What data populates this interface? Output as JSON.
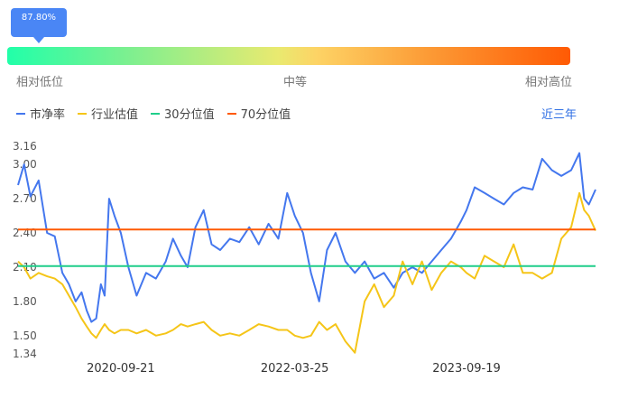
{
  "position": {
    "percentile_label": "87.80%",
    "percentile": 0.878,
    "low_label": "相对低位",
    "mid_label": "中等",
    "high_label": "相对高位"
  },
  "range_selector": {
    "label": "近三年"
  },
  "colors": {
    "pb": "#4477ee",
    "industry": "#f5c518",
    "p30": "#1fce8a",
    "p70": "#ff5a04",
    "accent": "#4a86f5"
  },
  "chart_data": {
    "type": "line",
    "title": "",
    "xlabel": "",
    "ylabel": "",
    "ylim": [
      1.34,
      3.16
    ],
    "yticks": [
      "3.16",
      "3.00",
      "2.70",
      "2.40",
      "2.10",
      "1.80",
      "1.50",
      "1.34"
    ],
    "ytick_values": [
      3.16,
      3.0,
      2.7,
      2.4,
      2.1,
      1.8,
      1.5,
      1.34
    ],
    "xticks": [
      "2020-09-21",
      "2022-03-25",
      "2023-09-19"
    ],
    "x_range": [
      "2019-11-01",
      "2024-10-31"
    ],
    "grid": false,
    "legend_placement": "top-left",
    "series": [
      {
        "name": "市净率",
        "color_key": "pb",
        "x": [
          "2019-11-01",
          "2019-11-20",
          "2019-12-10",
          "2020-01-05",
          "2020-02-01",
          "2020-02-25",
          "2020-03-20",
          "2020-04-10",
          "2020-05-01",
          "2020-05-20",
          "2020-06-05",
          "2020-06-20",
          "2020-07-05",
          "2020-07-20",
          "2020-08-01",
          "2020-08-15",
          "2020-09-01",
          "2020-09-21",
          "2020-10-15",
          "2020-11-10",
          "2020-12-10",
          "2021-01-10",
          "2021-02-10",
          "2021-03-05",
          "2021-03-30",
          "2021-04-20",
          "2021-05-15",
          "2021-06-10",
          "2021-07-05",
          "2021-08-01",
          "2021-09-01",
          "2021-10-01",
          "2021-11-01",
          "2021-12-01",
          "2022-01-01",
          "2022-02-01",
          "2022-03-01",
          "2022-03-25",
          "2022-04-20",
          "2022-05-15",
          "2022-06-10",
          "2022-07-05",
          "2022-08-01",
          "2022-09-01",
          "2022-10-01",
          "2022-11-01",
          "2022-12-01",
          "2023-01-01",
          "2023-02-01",
          "2023-03-01",
          "2023-04-01",
          "2023-05-01",
          "2023-06-01",
          "2023-07-01",
          "2023-08-01",
          "2023-09-01",
          "2023-09-19",
          "2023-10-15",
          "2023-11-15",
          "2023-12-15",
          "2024-01-15",
          "2024-02-15",
          "2024-03-15",
          "2024-04-15",
          "2024-05-15",
          "2024-06-15",
          "2024-07-15",
          "2024-08-15",
          "2024-09-10",
          "2024-09-25",
          "2024-10-10",
          "2024-10-31"
        ],
        "values": [
          2.82,
          3.0,
          2.72,
          2.86,
          2.4,
          2.37,
          2.05,
          1.95,
          1.8,
          1.88,
          1.72,
          1.62,
          1.65,
          1.95,
          1.85,
          2.7,
          2.55,
          2.4,
          2.1,
          1.85,
          2.05,
          2.0,
          2.15,
          2.35,
          2.2,
          2.1,
          2.45,
          2.6,
          2.3,
          2.25,
          2.35,
          2.32,
          2.45,
          2.3,
          2.48,
          2.35,
          2.75,
          2.55,
          2.4,
          2.05,
          1.8,
          2.25,
          2.4,
          2.15,
          2.05,
          2.15,
          2.0,
          2.05,
          1.92,
          2.05,
          2.1,
          2.05,
          2.15,
          2.25,
          2.35,
          2.5,
          2.6,
          2.8,
          2.75,
          2.7,
          2.65,
          2.75,
          2.8,
          2.78,
          3.05,
          2.95,
          2.9,
          2.95,
          3.1,
          2.7,
          2.65,
          2.78
        ]
      },
      {
        "name": "行业估值",
        "color_key": "industry",
        "x": [
          "2019-11-01",
          "2019-11-20",
          "2019-12-10",
          "2020-01-05",
          "2020-02-01",
          "2020-02-25",
          "2020-03-20",
          "2020-04-10",
          "2020-05-01",
          "2020-05-20",
          "2020-06-05",
          "2020-06-20",
          "2020-07-05",
          "2020-07-20",
          "2020-08-01",
          "2020-08-15",
          "2020-09-01",
          "2020-09-21",
          "2020-10-15",
          "2020-11-10",
          "2020-12-10",
          "2021-01-10",
          "2021-02-10",
          "2021-03-05",
          "2021-03-30",
          "2021-04-20",
          "2021-05-15",
          "2021-06-10",
          "2021-07-05",
          "2021-08-01",
          "2021-09-01",
          "2021-10-01",
          "2021-11-01",
          "2021-12-01",
          "2022-01-01",
          "2022-02-01",
          "2022-03-01",
          "2022-03-25",
          "2022-04-20",
          "2022-05-15",
          "2022-06-10",
          "2022-07-05",
          "2022-08-01",
          "2022-09-01",
          "2022-10-01",
          "2022-11-01",
          "2022-12-01",
          "2023-01-01",
          "2023-02-01",
          "2023-03-01",
          "2023-04-01",
          "2023-05-01",
          "2023-06-01",
          "2023-07-01",
          "2023-08-01",
          "2023-09-01",
          "2023-09-19",
          "2023-10-15",
          "2023-11-15",
          "2023-12-15",
          "2024-01-15",
          "2024-02-15",
          "2024-03-15",
          "2024-04-15",
          "2024-05-15",
          "2024-06-15",
          "2024-07-15",
          "2024-08-15",
          "2024-09-10",
          "2024-09-25",
          "2024-10-10",
          "2024-10-31"
        ],
        "values": [
          2.15,
          2.1,
          2.0,
          2.05,
          2.02,
          2.0,
          1.95,
          1.85,
          1.75,
          1.65,
          1.58,
          1.52,
          1.48,
          1.55,
          1.6,
          1.55,
          1.52,
          1.55,
          1.55,
          1.52,
          1.55,
          1.5,
          1.52,
          1.55,
          1.6,
          1.58,
          1.6,
          1.62,
          1.55,
          1.5,
          1.52,
          1.5,
          1.55,
          1.6,
          1.58,
          1.55,
          1.55,
          1.5,
          1.48,
          1.5,
          1.62,
          1.55,
          1.6,
          1.45,
          1.35,
          1.8,
          1.95,
          1.75,
          1.85,
          2.15,
          1.95,
          2.15,
          1.9,
          2.05,
          2.15,
          2.1,
          2.05,
          2.0,
          2.2,
          2.15,
          2.1,
          2.3,
          2.05,
          2.05,
          2.0,
          2.05,
          2.35,
          2.45,
          2.75,
          2.6,
          2.55,
          2.42
        ]
      },
      {
        "name": "30分位值",
        "color_key": "p30",
        "constant": 2.11
      },
      {
        "name": "70分位值",
        "color_key": "p70",
        "constant": 2.43
      }
    ]
  }
}
